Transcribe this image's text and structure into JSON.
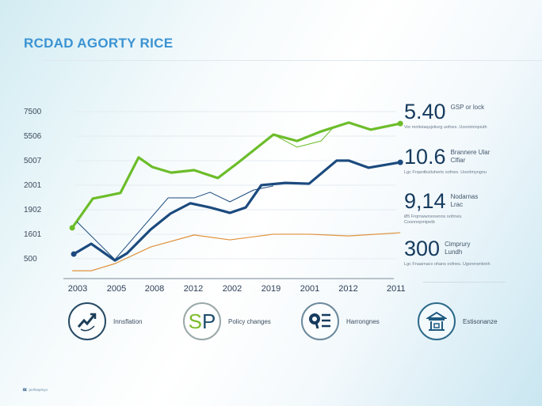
{
  "title": "RCDAD AGORTY RICE",
  "chart_data": {
    "type": "line",
    "title": "RCDAD AGORTY RICE",
    "y_tick_labels": [
      "500",
      "1601",
      "1902",
      "2001",
      "5007",
      "5506",
      "7500"
    ],
    "x_tick_labels": [
      "2003",
      "2005",
      "2008",
      "2012",
      "2002",
      "2019",
      "2001",
      "2012",
      "2011"
    ],
    "grid": true,
    "series": [
      {
        "name": "green-main",
        "color": "#6cbd2a",
        "width": 3.2,
        "x": [
          -0.14,
          0.39,
          1.1,
          1.57,
          1.92,
          2.41,
          3.0,
          3.61,
          4.12,
          5.04,
          5.65,
          6.27,
          6.98,
          7.55,
          8.31
        ],
        "y": [
          1.23,
          2.42,
          2.65,
          4.1,
          3.71,
          3.48,
          3.58,
          3.26,
          3.87,
          5.03,
          4.77,
          5.16,
          5.52,
          5.23,
          5.48
        ],
        "end_marker": true,
        "start_marker": true
      },
      {
        "name": "green-thin",
        "color": "#6cbd2a",
        "width": 1,
        "x": [
          5.04,
          5.65,
          6.27,
          6.6
        ],
        "y": [
          5.03,
          4.52,
          4.77,
          5.35
        ]
      },
      {
        "name": "navy-main",
        "color": "#1b4a7e",
        "width": 3.2,
        "x": [
          -0.1,
          0.35,
          0.96,
          1.27,
          1.88,
          2.39,
          2.9,
          3.41,
          3.92,
          4.33,
          4.73,
          5.35,
          5.96,
          6.67,
          6.98,
          7.49,
          8.31
        ],
        "y": [
          0.16,
          0.58,
          -0.1,
          0.19,
          1.16,
          1.81,
          2.23,
          2.06,
          1.84,
          2.06,
          2.97,
          3.06,
          3.03,
          3.97,
          3.97,
          3.68,
          3.9
        ],
        "end_marker": true,
        "start_marker": true
      },
      {
        "name": "navy-thin",
        "color": "#1b4a7e",
        "width": 1,
        "x": [
          -0.02,
          0.96,
          2.33,
          3.0,
          3.41,
          3.92,
          4.53,
          5.04
        ],
        "y": [
          1.48,
          -0.06,
          2.45,
          2.45,
          2.68,
          2.29,
          2.77,
          2.94
        ]
      },
      {
        "name": "orange",
        "color": "#e0913a",
        "width": 1.2,
        "x": [
          -0.14,
          0.35,
          0.96,
          1.88,
          3.0,
          3.92,
          5.04,
          5.96,
          6.98,
          8.31
        ],
        "y": [
          -0.52,
          -0.52,
          -0.23,
          0.45,
          0.94,
          0.74,
          0.97,
          0.97,
          0.9,
          1.03
        ]
      }
    ]
  },
  "stats": [
    {
      "value": "5.40",
      "label": "GSP or lock",
      "desc": "Vor mnitstaqujstiurg uofnes. Uooniminpiuth"
    },
    {
      "value": "10.6",
      "label": "Brannere Ular Clfiar",
      "desc": "Lgc Frqantbuliuherts oofnes. Uoorlmyngnu"
    },
    {
      "value": "9,14",
      "label": "Nodarnas Lrac",
      "desc": "Ø5 Frqmwwnsroenns oofrnes. Coonnnpmipetb"
    },
    {
      "value": "300",
      "label": "Cimprury Lundh",
      "desc": "Lgc Fnaarnacv ohans oofnes. Ugorerwntonh"
    }
  ],
  "icons": [
    {
      "name": "trend-up-icon",
      "label": "Innsflation"
    },
    {
      "name": "sp-logo-icon",
      "label": "Policy changes",
      "glyph_s": "S",
      "glyph_p": "P",
      "color_s": "#7dbb2a",
      "color_p": "#1f4e6e"
    },
    {
      "name": "search-list-icon",
      "label": "Harrongnes"
    },
    {
      "name": "bank-icon",
      "label": "Estisonanze"
    }
  ],
  "footer": {
    "text": "prnfsepmyo"
  }
}
